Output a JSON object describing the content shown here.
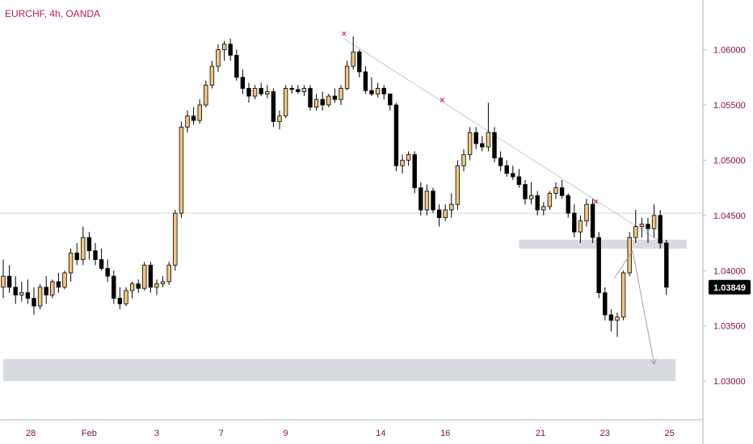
{
  "chart_data": {
    "type": "candlestick",
    "title": "EURCHF, 4h, OANDA",
    "symbol": "EURCHF",
    "timeframe": "4h",
    "broker": "OANDA",
    "current_price": "1.03849",
    "ylim": [
      1.0265,
      1.0645
    ],
    "y_ticks": [
      {
        "value": 1.06,
        "label": "1.06000"
      },
      {
        "value": 1.055,
        "label": "1.05500"
      },
      {
        "value": 1.05,
        "label": "1.05000"
      },
      {
        "value": 1.045,
        "label": "1.04500"
      },
      {
        "value": 1.04,
        "label": "1.04000"
      },
      {
        "value": 1.035,
        "label": "1.03500"
      },
      {
        "value": 1.03,
        "label": "1.03000"
      }
    ],
    "x_ticks": [
      {
        "bar": 4.5,
        "label": "28"
      },
      {
        "bar": 14,
        "label": "Feb"
      },
      {
        "bar": 25,
        "label": "3"
      },
      {
        "bar": 35.5,
        "label": "7"
      },
      {
        "bar": 46,
        "label": "9"
      },
      {
        "bar": 61.5,
        "label": "14"
      },
      {
        "bar": 72,
        "label": "16"
      },
      {
        "bar": 87.5,
        "label": "21"
      },
      {
        "bar": 98,
        "label": "23"
      },
      {
        "bar": 108.5,
        "label": "25"
      }
    ],
    "colors": {
      "up": "#f4c57d",
      "down": "#000000",
      "wick": "#000000",
      "zone": "#d1d4dc",
      "trendline": "#c8c8cc",
      "marker": "#e0245e",
      "axis_text": "#8a0f3f",
      "price_tag": "#000000"
    },
    "candles": [
      [
        1.0385,
        1.041,
        1.0375,
        1.0395
      ],
      [
        1.0395,
        1.0405,
        1.038,
        1.0385
      ],
      [
        1.0385,
        1.0395,
        1.037,
        1.0378
      ],
      [
        1.0378,
        1.039,
        1.0372,
        1.038
      ],
      [
        1.038,
        1.0392,
        1.037,
        1.0375
      ],
      [
        1.0375,
        1.0385,
        1.036,
        1.0368
      ],
      [
        1.0368,
        1.0388,
        1.0365,
        1.0385
      ],
      [
        1.0385,
        1.0395,
        1.037,
        1.0378
      ],
      [
        1.0378,
        1.0392,
        1.0375,
        1.039
      ],
      [
        1.039,
        1.0398,
        1.038,
        1.0385
      ],
      [
        1.0385,
        1.04,
        1.0383,
        1.0398
      ],
      [
        1.0398,
        1.042,
        1.039,
        1.0416
      ],
      [
        1.0416,
        1.0425,
        1.0405,
        1.041
      ],
      [
        1.041,
        1.044,
        1.0405,
        1.043
      ],
      [
        1.043,
        1.0435,
        1.041,
        1.0418
      ],
      [
        1.0418,
        1.0425,
        1.0405,
        1.041
      ],
      [
        1.041,
        1.042,
        1.04,
        1.0402
      ],
      [
        1.0402,
        1.041,
        1.039,
        1.0395
      ],
      [
        1.0395,
        1.04,
        1.037,
        1.0375
      ],
      [
        1.0375,
        1.0385,
        1.0365,
        1.037
      ],
      [
        1.037,
        1.0385,
        1.0368,
        1.0382
      ],
      [
        1.0382,
        1.039,
        1.0375,
        1.0388
      ],
      [
        1.0388,
        1.0392,
        1.038,
        1.0384
      ],
      [
        1.0384,
        1.0408,
        1.0382,
        1.0405
      ],
      [
        1.0405,
        1.0408,
        1.038,
        1.0385
      ],
      [
        1.0385,
        1.0392,
        1.0378,
        1.0388
      ],
      [
        1.0388,
        1.0395,
        1.0385,
        1.039
      ],
      [
        1.039,
        1.0408,
        1.0387,
        1.0405
      ],
      [
        1.0405,
        1.0455,
        1.04,
        1.0452
      ],
      [
        1.0452,
        1.0535,
        1.0448,
        1.053
      ],
      [
        1.053,
        1.0545,
        1.0525,
        1.054
      ],
      [
        1.054,
        1.0548,
        1.0532,
        1.0536
      ],
      [
        1.0536,
        1.0555,
        1.0533,
        1.055
      ],
      [
        1.055,
        1.0572,
        1.0548,
        1.0568
      ],
      [
        1.0568,
        1.059,
        1.0565,
        1.0585
      ],
      [
        1.0585,
        1.0605,
        1.058,
        1.06
      ],
      [
        1.06,
        1.0608,
        1.059,
        1.0605
      ],
      [
        1.0605,
        1.061,
        1.059,
        1.0595
      ],
      [
        1.0595,
        1.06,
        1.0572,
        1.0575
      ],
      [
        1.0575,
        1.0582,
        1.056,
        1.0565
      ],
      [
        1.0565,
        1.057,
        1.0552,
        1.0558
      ],
      [
        1.0558,
        1.0568,
        1.0555,
        1.0565
      ],
      [
        1.0565,
        1.057,
        1.0558,
        1.056
      ],
      [
        1.056,
        1.0568,
        1.0556,
        1.0562
      ],
      [
        1.0562,
        1.0565,
        1.053,
        1.0535
      ],
      [
        1.0535,
        1.0545,
        1.0528,
        1.054
      ],
      [
        1.054,
        1.0568,
        1.0538,
        1.0565
      ],
      [
        1.0565,
        1.0568,
        1.056,
        1.0564
      ],
      [
        1.0564,
        1.0568,
        1.056,
        1.0562
      ],
      [
        1.0562,
        1.0568,
        1.0558,
        1.0565
      ],
      [
        1.0565,
        1.0568,
        1.0545,
        1.0548
      ],
      [
        1.0548,
        1.056,
        1.0545,
        1.0555
      ],
      [
        1.0555,
        1.0562,
        1.0545,
        1.055
      ],
      [
        1.055,
        1.056,
        1.0548,
        1.0558
      ],
      [
        1.0558,
        1.0565,
        1.0552,
        1.0555
      ],
      [
        1.0555,
        1.0568,
        1.055,
        1.0565
      ],
      [
        1.0565,
        1.059,
        1.0563,
        1.0585
      ],
      [
        1.0585,
        1.0612,
        1.0582,
        1.0598
      ],
      [
        1.0598,
        1.06,
        1.0575,
        1.058
      ],
      [
        1.058,
        1.0585,
        1.056,
        1.0563
      ],
      [
        1.0563,
        1.0575,
        1.0558,
        1.056
      ],
      [
        1.056,
        1.057,
        1.0557,
        1.0565
      ],
      [
        1.0565,
        1.0568,
        1.0555,
        1.056
      ],
      [
        1.056,
        1.056,
        1.0545,
        1.055
      ],
      [
        1.055,
        1.0552,
        1.049,
        1.0495
      ],
      [
        1.0495,
        1.0505,
        1.0488,
        1.05
      ],
      [
        1.05,
        1.0508,
        1.0495,
        1.0505
      ],
      [
        1.0505,
        1.0508,
        1.047,
        1.0475
      ],
      [
        1.0475,
        1.048,
        1.045,
        1.0455
      ],
      [
        1.0455,
        1.0478,
        1.045,
        1.0472
      ],
      [
        1.0472,
        1.0475,
        1.0452,
        1.0455
      ],
      [
        1.0455,
        1.046,
        1.044,
        1.0448
      ],
      [
        1.0448,
        1.046,
        1.0445,
        1.0455
      ],
      [
        1.0455,
        1.047,
        1.0448,
        1.046
      ],
      [
        1.046,
        1.05,
        1.0455,
        1.0495
      ],
      [
        1.0495,
        1.051,
        1.049,
        1.0505
      ],
      [
        1.0505,
        1.053,
        1.05,
        1.0525
      ],
      [
        1.0525,
        1.053,
        1.051,
        1.0515
      ],
      [
        1.0515,
        1.0522,
        1.0508,
        1.0512
      ],
      [
        1.0512,
        1.0552,
        1.0508,
        1.0525
      ],
      [
        1.0525,
        1.053,
        1.0498,
        1.0502
      ],
      [
        1.0502,
        1.0508,
        1.049,
        1.0495
      ],
      [
        1.0495,
        1.05,
        1.0485,
        1.0488
      ],
      [
        1.0488,
        1.0495,
        1.0482,
        1.0485
      ],
      [
        1.0485,
        1.0492,
        1.0475,
        1.0478
      ],
      [
        1.0478,
        1.0482,
        1.046,
        1.0465
      ],
      [
        1.0465,
        1.048,
        1.046,
        1.0468
      ],
      [
        1.0468,
        1.0472,
        1.045,
        1.0455
      ],
      [
        1.0455,
        1.0462,
        1.045,
        1.0458
      ],
      [
        1.0458,
        1.0472,
        1.0455,
        1.047
      ],
      [
        1.047,
        1.048,
        1.0465,
        1.0475
      ],
      [
        1.0475,
        1.0482,
        1.0465,
        1.0468
      ],
      [
        1.0468,
        1.047,
        1.0448,
        1.0452
      ],
      [
        1.0452,
        1.046,
        1.043,
        1.0435
      ],
      [
        1.0435,
        1.045,
        1.0425,
        1.0445
      ],
      [
        1.0445,
        1.0465,
        1.044,
        1.046
      ],
      [
        1.046,
        1.0465,
        1.0425,
        1.043
      ],
      [
        1.043,
        1.0435,
        1.0375,
        1.038
      ],
      [
        1.038,
        1.0385,
        1.0355,
        1.036
      ],
      [
        1.036,
        1.0365,
        1.0345,
        1.0355
      ],
      [
        1.0355,
        1.0362,
        1.034,
        1.0358
      ],
      [
        1.0358,
        1.04,
        1.0355,
        1.0398
      ],
      [
        1.0398,
        1.0435,
        1.0395,
        1.043
      ],
      [
        1.043,
        1.0455,
        1.0425,
        1.044
      ],
      [
        1.044,
        1.0448,
        1.043,
        1.0442
      ],
      [
        1.0442,
        1.0448,
        1.0425,
        1.0438
      ],
      [
        1.0438,
        1.046,
        1.043,
        1.045
      ],
      [
        1.045,
        1.0455,
        1.042,
        1.0425
      ],
      [
        1.0425,
        1.0428,
        1.0378,
        1.0385
      ]
    ],
    "zones": [
      {
        "from_bar": 0,
        "to_bar": 109.5,
        "low": 1.03,
        "high": 1.032
      },
      {
        "from_bar": 84,
        "to_bar": 111.5,
        "low": 1.042,
        "high": 1.0428
      }
    ],
    "horizontal_line": 1.0452,
    "trendline": [
      [
        55.5,
        1.061
      ],
      [
        106.5,
        1.0428
      ]
    ],
    "projection": [
      [
        99.5,
        1.0393
      ],
      [
        102.5,
        1.0418
      ],
      [
        106,
        1.0316
      ]
    ],
    "swing_markers": [
      [
        55.5,
        1.0614
      ],
      [
        71.5,
        1.0554
      ],
      [
        96.5,
        1.0462
      ]
    ]
  }
}
